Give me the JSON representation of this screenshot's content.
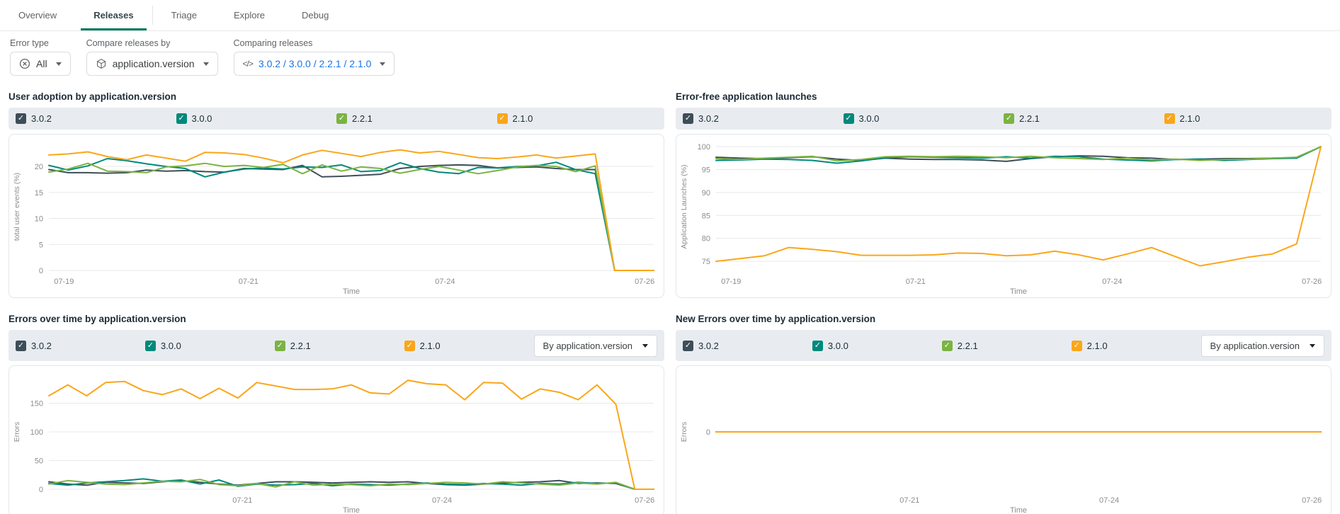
{
  "tabs": [
    {
      "label": "Overview",
      "active": false
    },
    {
      "label": "Releases",
      "active": true
    },
    {
      "label": "Triage",
      "active": false
    },
    {
      "label": "Explore",
      "active": false
    },
    {
      "label": "Debug",
      "active": false
    }
  ],
  "filters": {
    "error_type": {
      "label": "Error type",
      "value": "All"
    },
    "compare_by": {
      "label": "Compare releases by",
      "value": "application.version"
    },
    "comparing": {
      "label": "Comparing releases",
      "display": "3.0.2 / 3.0.0 / 2.2.1 / 2.1.0",
      "versions": [
        "3.0.2",
        "3.0.0",
        "2.2.1",
        "2.1.0"
      ]
    }
  },
  "group_by_label": "By application.version",
  "colors": {
    "3.0.2": "#3e4e58",
    "3.0.0": "#00897b",
    "2.2.1": "#7cb342",
    "2.1.0": "#faa61a",
    "accent": "#00795c",
    "link": "#1a73e8",
    "grid": "#e8e8e8",
    "tick_text": "#8c8c8c"
  },
  "chart_data": [
    {
      "type": "line",
      "title": "User adoption by application.version",
      "ylabel": "total user events (%)",
      "xlabel": "Time",
      "ylim": [
        0,
        24.5
      ],
      "yticks": [
        0,
        5,
        10,
        15,
        20
      ],
      "xticks": [
        {
          "label": "07-19",
          "pos": 0.025
        },
        {
          "label": "07-21",
          "pos": 0.33
        },
        {
          "label": "07-24",
          "pos": 0.655
        },
        {
          "label": "07-26",
          "pos": 0.985
        }
      ],
      "legend_position": "top",
      "grid": true,
      "group_dropdown": false,
      "series": [
        {
          "name": "3.0.2",
          "values": [
            19.4,
            18.8,
            18.8,
            18.7,
            18.8,
            19.3,
            19.1,
            19.2,
            19.0,
            18.9,
            19.6,
            19.5,
            19.4,
            20.2,
            18.0,
            18.1,
            18.3,
            18.5,
            19.6,
            20.0,
            20.2,
            20.3,
            20.2,
            19.7,
            19.8,
            19.9,
            19.6,
            19.4,
            19.4,
            0,
            0,
            0
          ]
        },
        {
          "name": "3.0.0",
          "values": [
            20.2,
            19.3,
            20.1,
            21.5,
            21.1,
            20.5,
            20.0,
            19.6,
            18.0,
            18.9,
            19.5,
            19.7,
            19.5,
            19.9,
            19.8,
            20.3,
            19.0,
            19.2,
            20.7,
            19.6,
            18.9,
            18.6,
            19.8,
            19.7,
            20.0,
            20.1,
            20.8,
            19.4,
            18.6,
            0,
            0,
            0
          ]
        },
        {
          "name": "2.2.1",
          "values": [
            18.9,
            19.5,
            20.6,
            19.1,
            19.0,
            18.8,
            19.9,
            20.1,
            20.6,
            20.0,
            20.2,
            19.8,
            20.4,
            18.6,
            20.3,
            19.1,
            19.9,
            19.6,
            18.7,
            19.4,
            20.0,
            19.3,
            18.6,
            19.2,
            19.9,
            20.2,
            20.0,
            19.0,
            20.1,
            0,
            0,
            0
          ]
        },
        {
          "name": "2.1.0",
          "values": [
            22.2,
            22.4,
            22.8,
            21.9,
            21.3,
            22.2,
            21.6,
            21.0,
            22.7,
            22.6,
            22.3,
            21.6,
            20.7,
            22.2,
            23.1,
            22.5,
            21.9,
            22.7,
            23.2,
            22.6,
            22.9,
            22.3,
            21.7,
            21.5,
            21.8,
            22.2,
            21.6,
            22.0,
            22.4,
            0,
            0,
            0
          ]
        }
      ]
    },
    {
      "type": "line",
      "title": "Error-free application launches",
      "ylabel": "Application Launches (%)",
      "xlabel": "Time",
      "ylim": [
        73,
        100.8
      ],
      "yticks": [
        75,
        80,
        85,
        90,
        95,
        100
      ],
      "xticks": [
        {
          "label": "07-19",
          "pos": 0.025
        },
        {
          "label": "07-21",
          "pos": 0.33
        },
        {
          "label": "07-24",
          "pos": 0.655
        },
        {
          "label": "07-26",
          "pos": 0.985
        }
      ],
      "legend_position": "top",
      "grid": true,
      "group_dropdown": false,
      "series": [
        {
          "name": "3.0.2",
          "values": [
            97.7,
            97.5,
            97.4,
            97.6,
            97.8,
            97.3,
            97.0,
            97.5,
            97.3,
            97.2,
            97.2,
            97.1,
            96.8,
            97.4,
            97.8,
            98.0,
            97.9,
            97.6,
            97.5,
            97.2,
            97.3,
            97.4,
            97.4,
            97.5,
            97.6,
            100
          ]
        },
        {
          "name": "3.0.0",
          "values": [
            97.0,
            97.1,
            97.3,
            97.2,
            97.0,
            96.4,
            96.9,
            97.6,
            97.8,
            97.7,
            97.6,
            97.5,
            97.8,
            97.5,
            97.9,
            97.8,
            97.3,
            97.1,
            96.9,
            97.2,
            97.3,
            97.0,
            97.2,
            97.4,
            97.5,
            100
          ]
        },
        {
          "name": "2.2.1",
          "values": [
            97.4,
            97.2,
            97.5,
            97.7,
            97.9,
            96.9,
            97.2,
            97.8,
            97.9,
            97.8,
            97.9,
            97.8,
            97.6,
            97.9,
            97.6,
            97.4,
            97.2,
            97.5,
            97.1,
            97.3,
            97.0,
            97.2,
            97.3,
            97.5,
            97.7,
            100
          ]
        },
        {
          "name": "2.1.0",
          "values": [
            75.0,
            75.6,
            76.2,
            78.0,
            77.6,
            77.1,
            76.3,
            76.3,
            76.3,
            76.4,
            76.8,
            76.7,
            76.2,
            76.4,
            77.2,
            76.4,
            75.3,
            76.6,
            78.0,
            76.0,
            74.0,
            74.9,
            75.9,
            76.6,
            78.8,
            100
          ]
        }
      ]
    },
    {
      "type": "line",
      "title": "Errors over time by application.version",
      "ylabel": "Errors",
      "xlabel": "Time",
      "ylim": [
        0,
        200
      ],
      "yticks": [
        0,
        50,
        100,
        150
      ],
      "xticks": [
        {
          "label": "07-21",
          "pos": 0.32
        },
        {
          "label": "07-24",
          "pos": 0.65
        },
        {
          "label": "07-26",
          "pos": 0.985
        }
      ],
      "legend_position": "top",
      "grid": true,
      "group_dropdown": true,
      "series": [
        {
          "name": "3.0.2",
          "values": [
            13,
            9,
            7,
            12,
            11,
            10,
            13,
            15,
            12,
            9,
            7,
            10,
            13,
            13,
            12,
            11,
            12,
            13,
            12,
            13,
            10,
            8,
            7,
            9,
            11,
            12,
            13,
            15,
            10,
            11,
            10,
            0,
            0
          ]
        },
        {
          "name": "3.0.0",
          "values": [
            10,
            7,
            11,
            13,
            15,
            18,
            14,
            16,
            9,
            16,
            5,
            9,
            7,
            8,
            10,
            6,
            9,
            8,
            7,
            9,
            11,
            9,
            8,
            10,
            9,
            7,
            10,
            9,
            12,
            10,
            11,
            0,
            0
          ]
        },
        {
          "name": "2.2.1",
          "values": [
            9,
            15,
            12,
            9,
            8,
            11,
            14,
            13,
            17,
            8,
            6,
            10,
            4,
            13,
            7,
            9,
            8,
            6,
            9,
            8,
            10,
            12,
            11,
            9,
            13,
            11,
            9,
            7,
            11,
            9,
            12,
            0,
            0
          ]
        },
        {
          "name": "2.1.0",
          "values": [
            163,
            182,
            163,
            186,
            188,
            172,
            165,
            175,
            158,
            176,
            159,
            186,
            180,
            174,
            174,
            175,
            182,
            168,
            166,
            190,
            184,
            182,
            156,
            186,
            185,
            157,
            175,
            169,
            156,
            182,
            148,
            0,
            0
          ]
        }
      ]
    },
    {
      "type": "line",
      "title": "New Errors over time by application.version",
      "ylabel": "Errors",
      "xlabel": "Time",
      "ylim": [
        -1,
        1
      ],
      "yticks": [
        0
      ],
      "xticks": [
        {
          "label": "07-21",
          "pos": 0.32
        },
        {
          "label": "07-24",
          "pos": 0.65
        },
        {
          "label": "07-26",
          "pos": 0.985
        }
      ],
      "legend_position": "top",
      "grid": true,
      "group_dropdown": true,
      "series": [
        {
          "name": "3.0.2",
          "values": [
            0,
            0,
            0,
            0,
            0,
            0,
            0,
            0,
            0,
            0,
            0,
            0,
            0,
            0,
            0,
            0,
            0,
            0,
            0,
            0,
            0,
            0,
            0,
            0,
            0,
            0,
            0,
            0,
            0,
            0,
            0,
            0,
            0
          ]
        },
        {
          "name": "3.0.0",
          "values": [
            0,
            0,
            0,
            0,
            0,
            0,
            0,
            0,
            0,
            0,
            0,
            0,
            0,
            0,
            0,
            0,
            0,
            0,
            0,
            0,
            0,
            0,
            0,
            0,
            0,
            0,
            0,
            0,
            0,
            0,
            0,
            0,
            0
          ]
        },
        {
          "name": "2.2.1",
          "values": [
            0,
            0,
            0,
            0,
            0,
            0,
            0,
            0,
            0,
            0,
            0,
            0,
            0,
            0,
            0,
            0,
            0,
            0,
            0,
            0,
            0,
            0,
            0,
            0,
            0,
            0,
            0,
            0,
            0,
            0,
            0,
            0,
            0
          ]
        },
        {
          "name": "2.1.0",
          "values": [
            0,
            0,
            0,
            0,
            0,
            0,
            0,
            0,
            0,
            0,
            0,
            0,
            0,
            0,
            0,
            0,
            0,
            0,
            0,
            0,
            0,
            0,
            0,
            0,
            0,
            0,
            0,
            0,
            0,
            0,
            0,
            0,
            0
          ]
        }
      ]
    }
  ]
}
